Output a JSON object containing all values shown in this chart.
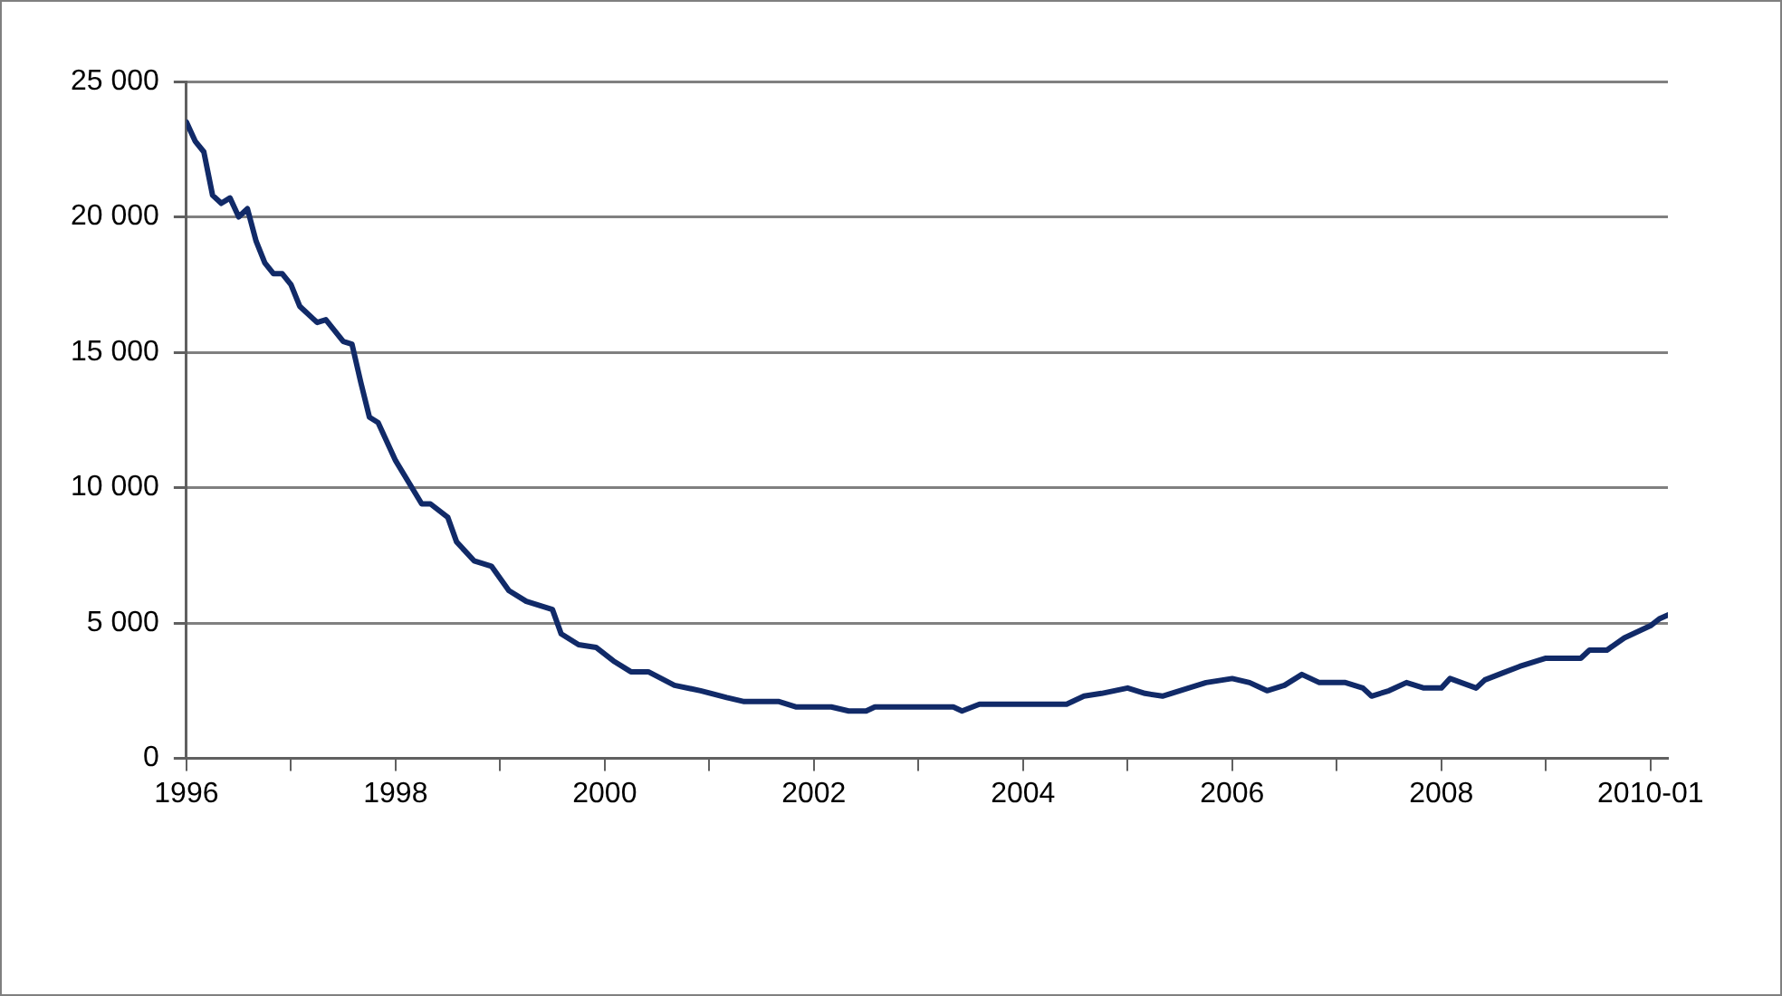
{
  "chart_data": {
    "type": "line",
    "x": [
      "1996-01",
      "1996-02",
      "1996-03",
      "1996-04",
      "1996-05",
      "1996-06",
      "1996-07",
      "1996-08",
      "1996-09",
      "1996-10",
      "1996-11",
      "1996-12",
      "1997-01",
      "1997-02",
      "1997-04",
      "1997-05",
      "1997-07",
      "1997-08",
      "1997-09",
      "1997-10",
      "1997-11",
      "1998-01",
      "1998-04",
      "1998-05",
      "1998-07",
      "1998-08",
      "1998-10",
      "1998-12",
      "1999-02",
      "1999-04",
      "1999-07",
      "1999-08",
      "1999-10",
      "1999-12",
      "2000-02",
      "2000-04",
      "2000-06",
      "2000-09",
      "2000-12",
      "2001-03",
      "2001-05",
      "2001-09",
      "2001-11",
      "2002-03",
      "2002-05",
      "2002-07",
      "2002-08",
      "2003-05",
      "2003-06",
      "2003-08",
      "2004-06",
      "2004-08",
      "2004-10",
      "2005-01",
      "2005-03",
      "2005-05",
      "2005-07",
      "2005-10",
      "2006-01",
      "2006-03",
      "2006-05",
      "2006-07",
      "2006-09",
      "2006-11",
      "2007-02",
      "2007-04",
      "2007-05",
      "2007-07",
      "2007-09",
      "2007-11",
      "2008-01",
      "2008-02",
      "2008-05",
      "2008-06",
      "2008-08",
      "2008-10",
      "2009-01",
      "2009-05",
      "2009-06",
      "2009-08",
      "2009-10",
      "2010-01",
      "2010-02",
      "2010-03"
    ],
    "series": [
      {
        "color": "#112a68",
        "values": [
          23500,
          22800,
          22400,
          20800,
          20500,
          20700,
          20000,
          20300,
          19100,
          18300,
          17900,
          17900,
          17500,
          16700,
          16100,
          16200,
          15400,
          15300,
          13900,
          12600,
          12400,
          11000,
          9400,
          9400,
          8900,
          8000,
          7300,
          7100,
          6200,
          5800,
          5500,
          4600,
          4200,
          4100,
          3600,
          3200,
          3200,
          2700,
          2500,
          2250,
          2100,
          2100,
          1900,
          1900,
          1750,
          1750,
          1900,
          1900,
          1750,
          2000,
          2000,
          2300,
          2400,
          2600,
          2400,
          2300,
          2500,
          2800,
          2950,
          2800,
          2500,
          2700,
          3100,
          2800,
          2800,
          2600,
          2300,
          2500,
          2800,
          2600,
          2600,
          2950,
          2600,
          2900,
          3150,
          3400,
          3700,
          3700,
          4000,
          4000,
          4450,
          4900,
          5150,
          5300
        ]
      }
    ],
    "xlim": [
      "1996-01",
      "2010-03"
    ],
    "xticks": [
      {
        "value": "1996-01",
        "label": "1996"
      },
      {
        "value": "1997-01",
        "label": null
      },
      {
        "value": "1998-01",
        "label": "1998"
      },
      {
        "value": "1999-01",
        "label": null
      },
      {
        "value": "2000-01",
        "label": "2000"
      },
      {
        "value": "2001-01",
        "label": null
      },
      {
        "value": "2002-01",
        "label": "2002"
      },
      {
        "value": "2003-01",
        "label": null
      },
      {
        "value": "2004-01",
        "label": "2004"
      },
      {
        "value": "2005-01",
        "label": null
      },
      {
        "value": "2006-01",
        "label": "2006"
      },
      {
        "value": "2007-01",
        "label": null
      },
      {
        "value": "2008-01",
        "label": "2008"
      },
      {
        "value": "2009-01",
        "label": null
      },
      {
        "value": "2010-01",
        "label": "2010-01"
      }
    ],
    "ylim": [
      0,
      25000
    ],
    "yticks": [
      0,
      {
        "value": 5000,
        "label": "5 000"
      },
      {
        "value": 10000,
        "label": "10 000"
      },
      {
        "value": 15000,
        "label": "15 000"
      },
      {
        "value": 20000,
        "label": "20 000"
      },
      {
        "value": 25000,
        "label": "25 000"
      }
    ],
    "grid": "y",
    "legend": false,
    "marker": "none",
    "line_style": "solid"
  }
}
